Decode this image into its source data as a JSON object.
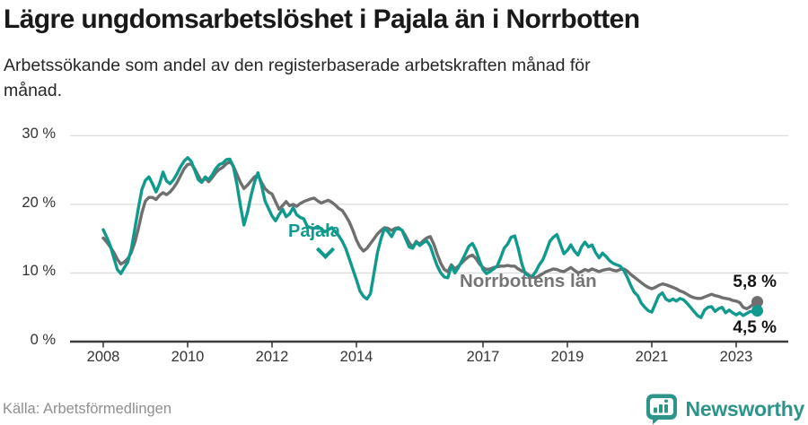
{
  "chart_data": {
    "type": "line",
    "title": "Lägre ungdomsarbetslöshet i Pajala än i Norrbotten",
    "subtitle_lines": [
      "Arbetssökande som andel av den registerbaserade arbetskraften månad för",
      "månad."
    ],
    "source": "Källa: Arbetsförmedlingen",
    "unit": "%",
    "frequency": "monthly",
    "x_start": "2008-01",
    "x_end": "2023-07",
    "x_axis": {
      "ticks": [
        {
          "label": "2008",
          "year": 2008
        },
        {
          "label": "2010",
          "year": 2010
        },
        {
          "label": "2012",
          "year": 2012
        },
        {
          "label": "2014",
          "year": 2014
        },
        {
          "label": "2017",
          "year": 2017
        },
        {
          "label": "2019",
          "year": 2019
        },
        {
          "label": "2021",
          "year": 2021
        },
        {
          "label": "2023",
          "year": 2023
        }
      ]
    },
    "y_axis": {
      "ticks": [
        {
          "label": "30 %",
          "value": 30
        },
        {
          "label": "20 %",
          "value": 20
        },
        {
          "label": "10 %",
          "value": 10
        },
        {
          "label": "0 %",
          "value": 0
        }
      ],
      "range": [
        0,
        30
      ],
      "grid": true
    },
    "series": [
      {
        "name": "Norrbottens län",
        "color": "#6f6f6f",
        "end_label": "5,8 %",
        "end_value": 5.8,
        "values": [
          15.1,
          14.5,
          13.8,
          13.0,
          12.0,
          11.3,
          11.6,
          12.1,
          13.0,
          14.5,
          16.5,
          18.8,
          20.5,
          21.0,
          21.0,
          20.7,
          21.3,
          21.7,
          21.4,
          21.8,
          22.4,
          23.2,
          24.2,
          25.2,
          25.8,
          25.9,
          25.2,
          24.2,
          23.3,
          23.8,
          23.3,
          23.9,
          24.6,
          25.1,
          25.4,
          25.9,
          26.2,
          25.6,
          24.4,
          23.2,
          22.3,
          22.8,
          23.4,
          24.0,
          24.3,
          23.2,
          22.3,
          21.8,
          21.5,
          20.4,
          19.3,
          19.8,
          20.4,
          19.8,
          20.0,
          19.7,
          20.1,
          20.4,
          20.6,
          20.8,
          20.9,
          20.5,
          20.2,
          20.4,
          20.6,
          20.3,
          19.9,
          19.4,
          19.1,
          18.3,
          17.4,
          16.2,
          14.8,
          13.8,
          13.2,
          13.6,
          14.3,
          15.0,
          15.7,
          16.2,
          16.6,
          16.5,
          16.2,
          16.5,
          16.6,
          16.2,
          15.4,
          14.4,
          13.8,
          14.6,
          14.2,
          14.7,
          15.1,
          15.3,
          14.2,
          12.7,
          11.4,
          10.5,
          10.2,
          11.2,
          10.6,
          11.0,
          11.5,
          12.0,
          12.4,
          12.6,
          12.1,
          11.3,
          10.8,
          10.5,
          10.6,
          10.8,
          10.9,
          11.0,
          11.0,
          11.1,
          11.0,
          11.0,
          10.6,
          10.3,
          10.1,
          9.7,
          9.4,
          9.3,
          9.6,
          9.9,
          10.2,
          10.4,
          10.6,
          10.5,
          10.3,
          10.2,
          10.5,
          10.8,
          10.4,
          10.0,
          10.2,
          10.5,
          10.3,
          10.6,
          10.4,
          10.2,
          10.4,
          10.5,
          10.6,
          10.4,
          10.3,
          10.5,
          10.6,
          10.3,
          9.8,
          9.4,
          9.0,
          8.6,
          8.2,
          7.9,
          7.7,
          7.9,
          8.2,
          8.4,
          8.3,
          8.1,
          7.9,
          7.7,
          7.4,
          7.2,
          6.9,
          6.6,
          6.4,
          6.3,
          6.3,
          6.5,
          6.7,
          6.9,
          6.7,
          6.6,
          6.4,
          6.3,
          6.2,
          6.0,
          5.9,
          5.7,
          5.0,
          4.8,
          5.1,
          5.5,
          5.8
        ]
      },
      {
        "name": "Pajala",
        "color": "#109a8d",
        "end_label": "4,5 %",
        "end_value": 4.5,
        "values": [
          16.3,
          15.2,
          14.0,
          12.2,
          10.5,
          9.9,
          10.8,
          11.6,
          13.5,
          16.5,
          19.5,
          22.2,
          23.5,
          24.0,
          23.0,
          21.8,
          23.0,
          24.7,
          23.4,
          23.0,
          23.6,
          24.5,
          25.5,
          26.3,
          26.8,
          26.3,
          25.0,
          23.6,
          23.2,
          24.0,
          23.6,
          24.3,
          25.2,
          25.8,
          26.0,
          26.5,
          26.6,
          25.5,
          23.0,
          19.8,
          17.0,
          18.8,
          21.2,
          23.2,
          24.6,
          22.8,
          20.5,
          19.4,
          18.3,
          17.6,
          18.5,
          19.3,
          18.2,
          18.6,
          19.5,
          18.5,
          18.1,
          17.9,
          16.8,
          16.6,
          16.5,
          16.8,
          16.4,
          16.0,
          16.3,
          16.6,
          16.0,
          15.4,
          14.6,
          13.5,
          12.0,
          10.5,
          9.0,
          7.4,
          6.6,
          6.2,
          7.0,
          10.0,
          13.0,
          15.0,
          16.5,
          16.0,
          15.3,
          16.3,
          16.5,
          16.2,
          15.0,
          13.8,
          13.6,
          14.5,
          14.0,
          14.4,
          14.7,
          13.9,
          12.4,
          11.0,
          10.0,
          9.4,
          9.3,
          11.0,
          10.0,
          10.8,
          11.8,
          12.8,
          13.9,
          14.3,
          13.3,
          11.8,
          10.5,
          9.9,
          10.2,
          10.6,
          11.0,
          12.2,
          13.6,
          14.2,
          15.2,
          15.4,
          13.6,
          11.4,
          9.9,
          9.6,
          9.5,
          10.2,
          11.2,
          11.9,
          13.2,
          14.6,
          15.2,
          15.6,
          14.2,
          12.8,
          13.3,
          14.1,
          13.2,
          12.6,
          13.8,
          14.5,
          13.8,
          14.1,
          13.0,
          12.2,
          12.9,
          12.4,
          11.8,
          11.4,
          11.2,
          11.0,
          10.4,
          9.4,
          8.2,
          7.2,
          6.7,
          5.6,
          5.0,
          4.5,
          4.3,
          5.5,
          6.7,
          7.1,
          6.2,
          5.9,
          6.2,
          5.9,
          6.3,
          6.1,
          5.6,
          5.0,
          4.4,
          3.8,
          3.5,
          4.6,
          5.0,
          5.1,
          4.4,
          4.8,
          5.0,
          4.2,
          4.6,
          4.2,
          3.9,
          4.2,
          3.8,
          4.1,
          4.4,
          4.3,
          4.5
        ]
      }
    ]
  },
  "footer": {
    "brand_name": "Newsworthy"
  },
  "colors": {
    "teal": "#109a8d",
    "gray": "#6f6f6f",
    "grid": "#dcdcdc",
    "axis": "#3c3c3c",
    "brand": "#2d9489"
  }
}
